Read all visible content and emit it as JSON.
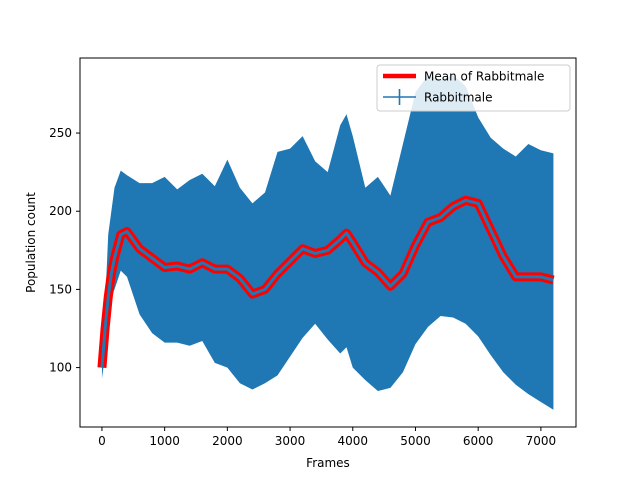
{
  "chart_data": {
    "type": "line",
    "title": "",
    "xlabel": "Frames",
    "ylabel": "Population count",
    "xlim": [
      -350,
      7560
    ],
    "ylim": [
      62,
      298
    ],
    "xticks": [
      0,
      1000,
      2000,
      3000,
      4000,
      5000,
      6000,
      7000
    ],
    "yticks": [
      100,
      150,
      200,
      250
    ],
    "grid": false,
    "legend": {
      "placement": "upper-right",
      "entries": [
        "Mean of Rabbitmale",
        "Rabbitmale"
      ]
    },
    "series": [
      {
        "name": "Rabbitmale",
        "kind": "errorbar",
        "color": "#1f77b4",
        "x": [
          0,
          50,
          100,
          150,
          200,
          300,
          400,
          600,
          800,
          1000,
          1200,
          1400,
          1600,
          1800,
          2000,
          2200,
          2400,
          2600,
          2800,
          3000,
          3200,
          3400,
          3600,
          3800,
          3900,
          4000,
          4200,
          4400,
          4600,
          4800,
          5000,
          5200,
          5400,
          5600,
          5800,
          6000,
          6200,
          6400,
          6600,
          6800,
          7000,
          7200
        ],
        "mean": [
          100,
          125,
          145,
          160,
          170,
          185,
          187,
          176,
          170,
          164,
          165,
          163,
          167,
          163,
          163,
          157,
          147,
          150,
          160,
          168,
          176,
          173,
          175,
          182,
          186,
          180,
          167,
          161,
          152,
          160,
          178,
          193,
          196,
          203,
          207,
          205,
          188,
          171,
          158,
          158,
          158,
          156
        ],
        "upper": [
          102,
          140,
          185,
          200,
          215,
          226,
          223,
          218,
          218,
          222,
          214,
          220,
          224,
          216,
          233,
          215,
          205,
          212,
          238,
          240,
          248,
          232,
          225,
          255,
          262,
          248,
          215,
          222,
          210,
          243,
          276,
          287,
          284,
          287,
          280,
          260,
          247,
          240,
          235,
          243,
          239,
          237
        ],
        "lower": [
          93,
          108,
          128,
          145,
          150,
          162,
          158,
          134,
          122,
          116,
          116,
          114,
          117,
          103,
          100,
          90,
          86,
          90,
          95,
          107,
          119,
          128,
          118,
          109,
          113,
          100,
          92,
          85,
          87,
          97,
          115,
          126,
          133,
          132,
          128,
          120,
          108,
          97,
          89,
          83,
          78,
          73
        ]
      },
      {
        "name": "Mean of Rabbitmale",
        "kind": "line",
        "color": "#ff0000",
        "x": [
          0,
          50,
          100,
          150,
          200,
          300,
          400,
          600,
          800,
          1000,
          1200,
          1400,
          1600,
          1800,
          2000,
          2200,
          2400,
          2600,
          2800,
          3000,
          3200,
          3400,
          3600,
          3800,
          3900,
          4000,
          4200,
          4400,
          4600,
          4800,
          5000,
          5200,
          5400,
          5600,
          5800,
          6000,
          6200,
          6400,
          6600,
          6800,
          7000,
          7200
        ],
        "values": [
          100,
          125,
          145,
          160,
          170,
          185,
          187,
          176,
          170,
          164,
          165,
          163,
          167,
          163,
          163,
          157,
          147,
          150,
          160,
          168,
          176,
          173,
          175,
          182,
          186,
          180,
          167,
          161,
          152,
          160,
          178,
          193,
          196,
          203,
          207,
          205,
          188,
          171,
          158,
          158,
          158,
          156
        ]
      }
    ]
  }
}
